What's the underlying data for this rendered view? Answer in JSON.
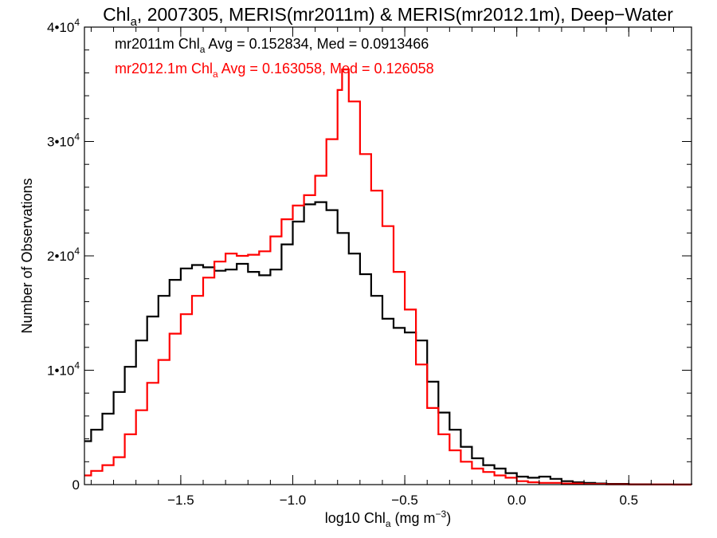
{
  "colors": {
    "series_1": "#000000",
    "series_2": "#ff0000",
    "axis": "#000000",
    "background": "#ffffff"
  },
  "chart_data": {
    "type": "line",
    "step": true,
    "title": {
      "prefix": "Chl",
      "sub": "a",
      "rest": ", 2007305, MERIS(mr2011m) & MERIS(mr2012.1m), Deep−Water"
    },
    "xlabel": {
      "prefix": "log10 Chl",
      "sub": "a",
      "rest": " (mg m",
      "sup": "−3",
      "end": ")"
    },
    "ylabel": "Number of Observations",
    "xlim": [
      -1.93,
      0.78
    ],
    "ylim": [
      0,
      40000
    ],
    "grid": false,
    "legend": "top-left",
    "x_ticks": [
      {
        "value": -1.5,
        "label": "−1.5"
      },
      {
        "value": -1.0,
        "label": "−1.0"
      },
      {
        "value": -0.5,
        "label": "−0.5"
      },
      {
        "value": 0.0,
        "label": "0.0"
      },
      {
        "value": 0.5,
        "label": "0.5"
      }
    ],
    "y_ticks": [
      {
        "value": 0,
        "label": "0"
      },
      {
        "value": 10000,
        "label": "1•",
        "base": "10",
        "exp": "4"
      },
      {
        "value": 20000,
        "label": "2•",
        "base": "10",
        "exp": "4"
      },
      {
        "value": 30000,
        "label": "3•",
        "base": "10",
        "exp": "4"
      },
      {
        "value": 40000,
        "label": "4•",
        "base": "10",
        "exp": "4"
      }
    ],
    "annotations": [
      {
        "series": 0,
        "prefix": "mr2011m Chl",
        "sub": "a",
        "rest": " Avg = 0.152834, Med = 0.0913466"
      },
      {
        "series": 1,
        "prefix": "mr2012.1m Chl",
        "sub": "a",
        "rest": " Avg = 0.163058, Med = 0.126058"
      }
    ],
    "series": [
      {
        "x": [
          -1.93,
          -1.9,
          -1.85,
          -1.8,
          -1.75,
          -1.7,
          -1.65,
          -1.6,
          -1.55,
          -1.5,
          -1.45,
          -1.4,
          -1.35,
          -1.3,
          -1.25,
          -1.2,
          -1.15,
          -1.1,
          -1.05,
          -1.0,
          -0.95,
          -0.9,
          -0.85,
          -0.8,
          -0.75,
          -0.7,
          -0.65,
          -0.6,
          -0.55,
          -0.5,
          -0.45,
          -0.4,
          -0.35,
          -0.3,
          -0.25,
          -0.2,
          -0.15,
          -0.1,
          -0.05,
          0.0,
          0.05,
          0.1,
          0.15,
          0.2,
          0.25,
          0.3,
          0.35,
          0.4,
          0.5,
          0.6,
          0.7,
          0.78
        ],
        "y": [
          3800,
          4800,
          6200,
          8100,
          10300,
          12600,
          14700,
          16500,
          17900,
          18900,
          19200,
          19000,
          18700,
          18800,
          19300,
          18600,
          18300,
          18800,
          21000,
          23000,
          24500,
          24700,
          24000,
          22000,
          20200,
          18400,
          16500,
          14500,
          13700,
          13300,
          12600,
          9000,
          6300,
          4800,
          3300,
          2300,
          1700,
          1400,
          1000,
          700,
          600,
          700,
          500,
          300,
          200,
          150,
          100,
          60,
          30,
          15,
          5,
          0
        ]
      },
      {
        "x": [
          -1.93,
          -1.9,
          -1.85,
          -1.8,
          -1.75,
          -1.7,
          -1.65,
          -1.6,
          -1.55,
          -1.5,
          -1.45,
          -1.4,
          -1.35,
          -1.3,
          -1.25,
          -1.2,
          -1.15,
          -1.1,
          -1.05,
          -1.0,
          -0.95,
          -0.9,
          -0.85,
          -0.8,
          -0.78,
          -0.75,
          -0.7,
          -0.65,
          -0.6,
          -0.55,
          -0.5,
          -0.45,
          -0.4,
          -0.35,
          -0.3,
          -0.25,
          -0.2,
          -0.15,
          -0.1,
          -0.05,
          0.0,
          0.05,
          0.1,
          0.2,
          0.3,
          0.4,
          0.5,
          0.6,
          0.7,
          0.78
        ],
        "y": [
          800,
          1200,
          1700,
          2400,
          4400,
          6500,
          8900,
          10900,
          13200,
          14900,
          16500,
          18100,
          19500,
          20200,
          20000,
          20100,
          20400,
          21700,
          23200,
          24400,
          25300,
          27000,
          30200,
          34500,
          36300,
          33500,
          28900,
          25700,
          22600,
          18600,
          15300,
          10500,
          6700,
          4400,
          3000,
          2000,
          1400,
          1100,
          800,
          600,
          300,
          200,
          150,
          100,
          50,
          20,
          10,
          5,
          0,
          0
        ]
      }
    ]
  }
}
